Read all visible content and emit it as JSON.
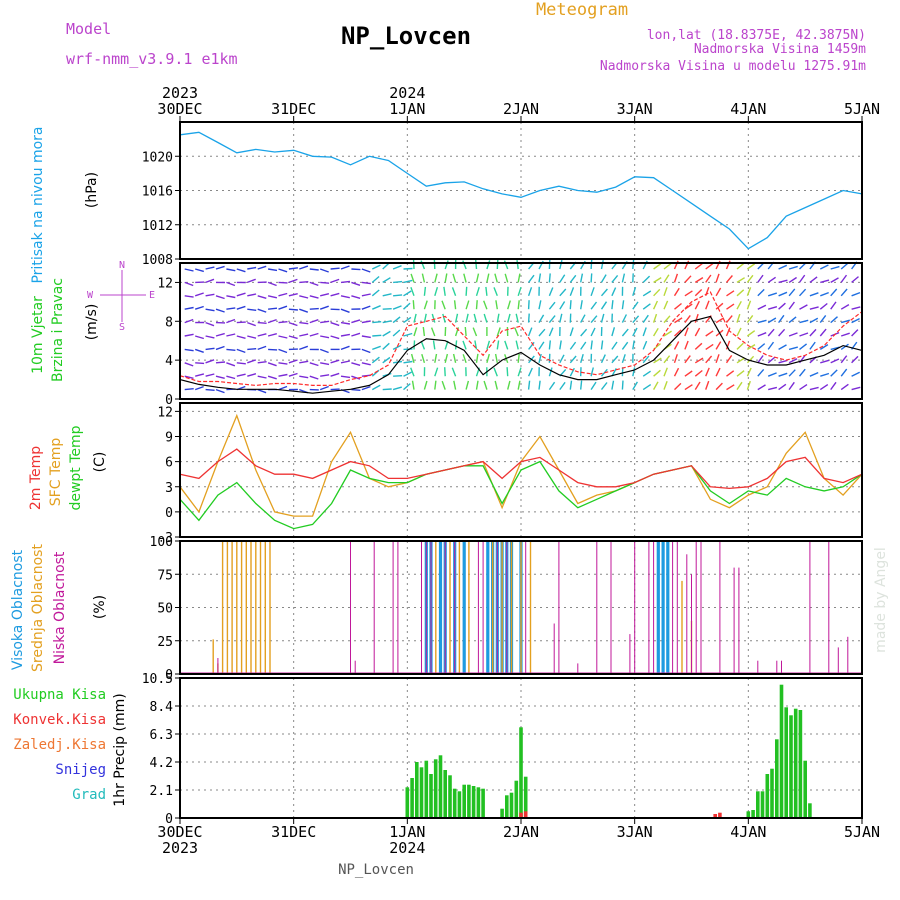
{
  "header": {
    "model_label": "Model",
    "model_name": "wrf-nmm_v3.9.1 e1km",
    "title": "NP_Lovcen",
    "product": "Meteogram",
    "coords": "lon,lat (18.8375E, 42.3875N)",
    "altitude": "Nadmorska Visina 1459m",
    "model_altitude": "Nadmorska Visina u modelu 1275.91m",
    "footer": "NP_Lovcen",
    "watermark": "made by Angel"
  },
  "time_axis": {
    "ticks": [
      "30DEC",
      "31DEC",
      "1JAN",
      "2JAN",
      "3JAN",
      "4JAN",
      "5JAN"
    ],
    "years": [
      {
        "label": "2023",
        "at": "30DEC"
      },
      {
        "label": "2024",
        "at": "1JAN"
      }
    ]
  },
  "colors": {
    "pressure": "#1aa3e8",
    "wind_speed": "#000000",
    "gust": "#ff2a2a",
    "t2m": "#ee3333",
    "tsfc": "#e3a020",
    "dewpoint": "#22cc22",
    "cloud_high": "#1e9be0",
    "cloud_mid": "#e3a020",
    "cloud_low": "#c0189a",
    "precip_total": "#22c022",
    "precip_conv": "#ee3333",
    "label_green": "#22cc22",
    "label_purple": "#bb44cc",
    "label_orange": "#e3a020"
  },
  "panels": {
    "pressure": {
      "ylabel": "Pritisak na nivou mora",
      "unit": "(hPa)",
      "ylim": [
        1008,
        1024
      ],
      "ticks": [
        "1008",
        "1012",
        "1016",
        "1020"
      ]
    },
    "wind": {
      "ylabel1": "10m Vjetar",
      "ylabel2": "Brzina i Pravac",
      "unit": "(m/s)",
      "ylim": [
        0,
        14
      ],
      "ticks": [
        "0",
        "4",
        "8",
        "12"
      ],
      "compass": [
        "N",
        "E",
        "W",
        "S"
      ]
    },
    "temp": {
      "ylabel_t2m": "2m Temp",
      "ylabel_sfc": "SFC Temp",
      "ylabel_dew": "dewpt Temp",
      "unit": "(C)",
      "ylim": [
        -3,
        13
      ],
      "ticks": [
        "-3",
        "0",
        "3",
        "6",
        "9",
        "12"
      ]
    },
    "cloud": {
      "ylabel_high": "Visoka Oblacnost",
      "ylabel_mid": "Srednja Oblacnost",
      "ylabel_low": "Niska Oblacnost",
      "unit": "(%)",
      "ylim": [
        0,
        100
      ],
      "ticks": [
        "0",
        "25",
        "50",
        "75",
        "100"
      ]
    },
    "precip": {
      "legend_total": "Ukupna Kisa",
      "legend_conv": "Konvek.Kisa",
      "legend_frz": "Zaledj.Kisa",
      "legend_snow": "Snijeg",
      "legend_grad": "Grad",
      "ylabel": "1hr Precip (mm)",
      "ylim": [
        0,
        10.5
      ],
      "ticks": [
        "0",
        "2.1",
        "4.2",
        "6.3",
        "8.4",
        "10.5"
      ]
    }
  },
  "chart_data": [
    {
      "type": "line",
      "title": "Pritisak na nivou mora",
      "ylabel": "(hPa)",
      "x_unit": "hours from 30DEC 00UTC",
      "ylim": [
        1008,
        1024
      ],
      "series": [
        {
          "name": "Pritisak na nivou mora",
          "x": [
            0,
            4,
            8,
            12,
            16,
            20,
            24,
            28,
            32,
            36,
            40,
            44,
            48,
            52,
            56,
            60,
            64,
            68,
            72,
            76,
            80,
            84,
            88,
            92,
            96,
            100,
            104,
            108,
            112,
            116,
            120,
            124,
            128,
            132,
            136,
            140,
            144
          ],
          "values": [
            1022.5,
            1022.8,
            1021.6,
            1020.4,
            1020.8,
            1020.5,
            1020.7,
            1020.0,
            1019.9,
            1019.0,
            1020.0,
            1019.5,
            1018.0,
            1016.5,
            1016.9,
            1017.0,
            1016.2,
            1015.6,
            1015.2,
            1016.0,
            1016.5,
            1016.0,
            1015.8,
            1016.4,
            1017.6,
            1017.5,
            1016.0,
            1014.5,
            1013.0,
            1011.5,
            1009.2,
            1010.5,
            1013.0,
            1014.0,
            1015.0,
            1016.0,
            1015.6
          ]
        }
      ]
    },
    {
      "type": "line",
      "title": "10m Vjetar Brzina i Pravac",
      "ylabel": "(m/s)",
      "x_unit": "hours from 30DEC 00UTC",
      "ylim": [
        0,
        14
      ],
      "series": [
        {
          "name": "speed",
          "x": [
            0,
            4,
            8,
            12,
            16,
            20,
            24,
            28,
            32,
            36,
            40,
            44,
            48,
            52,
            56,
            60,
            64,
            68,
            72,
            76,
            80,
            84,
            88,
            92,
            96,
            100,
            104,
            108,
            112,
            116,
            120,
            124,
            128,
            132,
            136,
            140,
            144
          ],
          "values": [
            2,
            1.5,
            1.2,
            1,
            1,
            1,
            0.8,
            0.6,
            0.8,
            1,
            1.4,
            2.5,
            5,
            6.2,
            6,
            5,
            2.5,
            4,
            4.8,
            3.5,
            2.5,
            2,
            2,
            2.5,
            3,
            4,
            6,
            8,
            8.5,
            5,
            4,
            3.5,
            3.5,
            4,
            4.5,
            5.5,
            5
          ]
        },
        {
          "name": "gust",
          "x": [
            0,
            4,
            8,
            12,
            16,
            20,
            24,
            28,
            32,
            36,
            40,
            44,
            48,
            52,
            56,
            60,
            64,
            68,
            72,
            76,
            80,
            84,
            88,
            92,
            96,
            100,
            104,
            108,
            112,
            116,
            120,
            124,
            128,
            132,
            136,
            140,
            144
          ],
          "values": [
            2.4,
            1.8,
            1.8,
            1.6,
            1.4,
            1.6,
            1.6,
            1.4,
            1.4,
            2,
            2.4,
            3.5,
            7.5,
            8,
            8.5,
            6.5,
            4.5,
            7,
            7.5,
            4.5,
            3.5,
            2.8,
            2.5,
            3,
            3.5,
            5,
            8,
            10,
            11,
            7,
            5.5,
            4.5,
            4,
            4.5,
            5.5,
            7.5,
            9
          ]
        }
      ]
    },
    {
      "type": "line",
      "title": "2m Temp / SFC Temp / dewpt Temp",
      "ylabel": "(C)",
      "x_unit": "hours from 30DEC 00UTC",
      "ylim": [
        -3,
        13
      ],
      "series": [
        {
          "name": "2m Temp",
          "x": [
            0,
            4,
            8,
            12,
            16,
            20,
            24,
            28,
            32,
            36,
            40,
            44,
            48,
            52,
            56,
            60,
            64,
            68,
            72,
            76,
            80,
            84,
            88,
            92,
            96,
            100,
            104,
            108,
            112,
            116,
            120,
            124,
            128,
            132,
            136,
            140,
            144
          ],
          "values": [
            4.5,
            4,
            6,
            7.5,
            5.5,
            4.5,
            4.5,
            4,
            5,
            6,
            5.5,
            4,
            4,
            4.5,
            5,
            5.5,
            6,
            4,
            6,
            6.5,
            5,
            3.5,
            3,
            3,
            3.5,
            4.5,
            5,
            5.5,
            3,
            2.8,
            3,
            4,
            6,
            6.5,
            4,
            3.5,
            4.5
          ]
        },
        {
          "name": "SFC Temp",
          "x": [
            0,
            4,
            8,
            12,
            16,
            20,
            24,
            28,
            32,
            36,
            40,
            44,
            48,
            52,
            56,
            60,
            64,
            68,
            72,
            76,
            80,
            84,
            88,
            92,
            96,
            100,
            104,
            108,
            112,
            116,
            120,
            124,
            128,
            132,
            136,
            140,
            144
          ],
          "values": [
            3,
            0,
            6,
            11.5,
            5,
            0,
            -0.5,
            -0.5,
            6,
            9.5,
            4,
            3,
            3.5,
            4.5,
            5,
            5.5,
            6,
            0.5,
            6,
            9,
            5,
            1,
            2,
            2.5,
            3.5,
            4.5,
            5,
            5.5,
            1.5,
            0.5,
            2,
            3,
            7,
            9.5,
            4,
            2,
            4.5
          ]
        },
        {
          "name": "dewpt Temp",
          "x": [
            0,
            4,
            8,
            12,
            16,
            20,
            24,
            28,
            32,
            36,
            40,
            44,
            48,
            52,
            56,
            60,
            64,
            68,
            72,
            76,
            80,
            84,
            88,
            92,
            96,
            100,
            104,
            108,
            112,
            116,
            120,
            124,
            128,
            132,
            136,
            140,
            144
          ],
          "values": [
            1.5,
            -1,
            2,
            3.5,
            1,
            -1,
            -2,
            -1.5,
            1,
            5,
            4,
            3.5,
            3.5,
            4.5,
            5,
            5.5,
            5.5,
            1,
            5,
            6,
            2.5,
            0.5,
            1.5,
            2.5,
            3.5,
            4.5,
            5,
            5.5,
            2.5,
            1,
            2.5,
            2,
            4,
            3,
            2.5,
            3,
            4.5
          ]
        }
      ]
    },
    {
      "type": "bar",
      "title": "Visoka / Srednja / Niska Oblacnost",
      "ylabel": "(%)",
      "x_unit": "hours from 30DEC 00UTC",
      "ylim": [
        0,
        100
      ],
      "series": [
        {
          "name": "Visoka Oblacnost",
          "x": [
            52,
            53,
            55,
            56,
            58,
            60,
            65,
            66,
            67,
            68,
            69,
            70,
            72,
            101,
            102,
            103
          ],
          "values": [
            100,
            100,
            100,
            100,
            100,
            100,
            100,
            100,
            100,
            100,
            100,
            100,
            100,
            100,
            100,
            100
          ]
        },
        {
          "name": "Srednja Oblacnost",
          "x": [
            7,
            8,
            9,
            10,
            11,
            12,
            13,
            14,
            15,
            16,
            17,
            18,
            19,
            54,
            57,
            59,
            61,
            66,
            68,
            70,
            72,
            74,
            106,
            108
          ],
          "values": [
            26,
            8,
            100,
            100,
            100,
            100,
            100,
            100,
            100,
            100,
            100,
            100,
            100,
            100,
            100,
            100,
            100,
            100,
            100,
            100,
            100,
            100,
            70,
            40
          ]
        },
        {
          "name": "Niska Oblacnost",
          "x": [
            8,
            36,
            37,
            41,
            45,
            46,
            51,
            52,
            53,
            56,
            58,
            63,
            64,
            67,
            69,
            73,
            79,
            80,
            84,
            88,
            91,
            95,
            96,
            99,
            100,
            104,
            105,
            107,
            108,
            109,
            110,
            114,
            117,
            118,
            122,
            126,
            127,
            133,
            137,
            139,
            141,
            144
          ],
          "values": [
            12,
            100,
            10,
            100,
            100,
            100,
            100,
            100,
            100,
            100,
            100,
            100,
            100,
            100,
            100,
            100,
            38,
            100,
            8,
            100,
            100,
            30,
            100,
            100,
            100,
            100,
            100,
            90,
            75,
            100,
            100,
            100,
            80,
            80,
            10,
            10,
            10,
            100,
            100,
            20,
            28,
            100
          ]
        }
      ]
    },
    {
      "type": "bar",
      "title": "1hr Precip",
      "ylabel": "1hr Precip (mm)",
      "x_unit": "hours from 30DEC 00UTC",
      "ylim": [
        0,
        10.5
      ],
      "series": [
        {
          "name": "Ukupna Kisa",
          "x": [
            48,
            49,
            50,
            51,
            52,
            53,
            54,
            55,
            56,
            57,
            58,
            59,
            60,
            61,
            62,
            63,
            64,
            65,
            66,
            67,
            68,
            69,
            70,
            71,
            72,
            73,
            74,
            75,
            76,
            77,
            78,
            79,
            80,
            81,
            82,
            83,
            84,
            85,
            86,
            87,
            88,
            89,
            90,
            91,
            92,
            93,
            94,
            95,
            96,
            97,
            98,
            99,
            100,
            101,
            102,
            103,
            104,
            105,
            106,
            107,
            108,
            109,
            110,
            111,
            112,
            113,
            114,
            115,
            116,
            117,
            118,
            119,
            120,
            121,
            122,
            123,
            124,
            125,
            126,
            127,
            128,
            129,
            130,
            131,
            132,
            133,
            134,
            135,
            136,
            137,
            138,
            139,
            140,
            141,
            142,
            143,
            144
          ],
          "values": [
            2.3,
            3.0,
            4.2,
            3.8,
            4.3,
            3.3,
            4.4,
            4.7,
            3.6,
            3.2,
            2.2,
            2.0,
            2.5,
            2.5,
            2.4,
            2.3,
            2.2,
            0,
            0,
            0,
            0.7,
            1.7,
            1.9,
            2.8,
            6.8,
            3.1,
            0,
            0,
            0,
            0,
            0,
            0,
            0,
            0,
            0,
            0,
            0,
            0,
            0,
            0,
            0,
            0,
            0,
            0,
            0,
            0,
            0,
            0,
            0,
            0,
            0,
            0,
            0,
            0,
            0,
            0,
            0,
            0,
            0,
            0,
            0,
            0,
            0,
            0,
            0,
            0,
            0,
            0,
            0,
            0,
            0,
            0,
            0.5,
            0.6,
            2.0,
            2.0,
            3.3,
            3.7,
            5.9,
            10.0,
            8.3,
            7.7,
            8.2,
            8.1,
            4.3,
            1.1,
            0,
            0,
            0,
            0,
            0,
            0,
            0,
            0,
            0,
            0,
            0
          ]
        },
        {
          "name": "Konvek.Kisa",
          "x": [
            72,
            73,
            113,
            114
          ],
          "values": [
            0.4,
            0.5,
            0.3,
            0.4
          ]
        }
      ]
    }
  ]
}
